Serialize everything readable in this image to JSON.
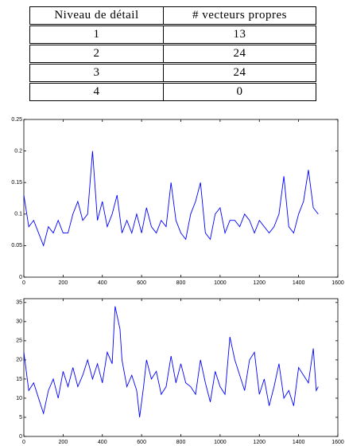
{
  "table": {
    "header": [
      "Niveau de détail",
      "# vecteurs propres"
    ],
    "rows": [
      [
        "1",
        "13"
      ],
      [
        "2",
        "24"
      ],
      [
        "3",
        "24"
      ],
      [
        "4",
        "0"
      ]
    ]
  },
  "chart_data": [
    {
      "type": "line",
      "color": "#0000ff",
      "xlim": [
        0,
        1600
      ],
      "xticks": [
        0,
        200,
        400,
        600,
        800,
        1000,
        1200,
        1400,
        1600
      ],
      "ylim": [
        0,
        0.25
      ],
      "yticks": [
        0,
        0.05,
        0.1,
        0.15,
        0.2,
        0.25
      ],
      "x": [
        0,
        25,
        50,
        75,
        100,
        125,
        150,
        175,
        200,
        225,
        250,
        275,
        300,
        325,
        350,
        375,
        400,
        425,
        450,
        475,
        500,
        525,
        550,
        575,
        600,
        625,
        650,
        675,
        700,
        725,
        750,
        775,
        800,
        825,
        850,
        875,
        900,
        925,
        950,
        975,
        1000,
        1025,
        1050,
        1075,
        1100,
        1125,
        1150,
        1175,
        1200,
        1225,
        1250,
        1275,
        1300,
        1325,
        1350,
        1375,
        1400,
        1425,
        1450,
        1475,
        1500
      ],
      "values": [
        0.13,
        0.08,
        0.09,
        0.07,
        0.05,
        0.08,
        0.07,
        0.09,
        0.07,
        0.07,
        0.1,
        0.12,
        0.09,
        0.1,
        0.2,
        0.09,
        0.12,
        0.08,
        0.1,
        0.13,
        0.07,
        0.09,
        0.07,
        0.1,
        0.07,
        0.11,
        0.08,
        0.07,
        0.09,
        0.08,
        0.15,
        0.09,
        0.07,
        0.06,
        0.1,
        0.12,
        0.15,
        0.07,
        0.06,
        0.1,
        0.11,
        0.07,
        0.09,
        0.09,
        0.08,
        0.1,
        0.09,
        0.07,
        0.09,
        0.08,
        0.07,
        0.08,
        0.1,
        0.16,
        0.08,
        0.07,
        0.1,
        0.12,
        0.17,
        0.11,
        0.1
      ]
    },
    {
      "type": "line",
      "color": "#0000ff",
      "xlim": [
        0,
        1600
      ],
      "xticks": [
        0,
        200,
        400,
        600,
        800,
        1000,
        1200,
        1400,
        1600
      ],
      "ylim": [
        0,
        36
      ],
      "yticks": [
        0,
        5,
        10,
        15,
        20,
        25,
        30,
        35
      ],
      "x": [
        0,
        25,
        50,
        75,
        100,
        125,
        150,
        175,
        200,
        225,
        250,
        275,
        300,
        325,
        350,
        375,
        400,
        425,
        450,
        465,
        490,
        500,
        525,
        550,
        575,
        590,
        610,
        625,
        650,
        675,
        700,
        725,
        750,
        775,
        800,
        825,
        850,
        875,
        900,
        925,
        950,
        975,
        1000,
        1025,
        1050,
        1075,
        1100,
        1125,
        1150,
        1175,
        1200,
        1225,
        1250,
        1275,
        1300,
        1325,
        1350,
        1375,
        1400,
        1425,
        1450,
        1475,
        1490,
        1500
      ],
      "values": [
        22,
        12,
        14,
        10,
        6,
        12,
        15,
        10,
        17,
        13,
        18,
        13,
        16,
        20,
        15,
        19,
        14,
        22,
        19,
        34,
        28,
        20,
        13,
        16,
        12,
        5,
        13,
        20,
        15,
        17,
        11,
        13,
        21,
        14,
        19,
        14,
        13,
        11,
        20,
        14,
        9,
        17,
        13,
        11,
        26,
        20,
        16,
        12,
        20,
        22,
        11,
        15,
        8,
        13,
        19,
        10,
        12,
        8,
        18,
        16,
        14,
        23,
        12,
        13
      ]
    }
  ]
}
